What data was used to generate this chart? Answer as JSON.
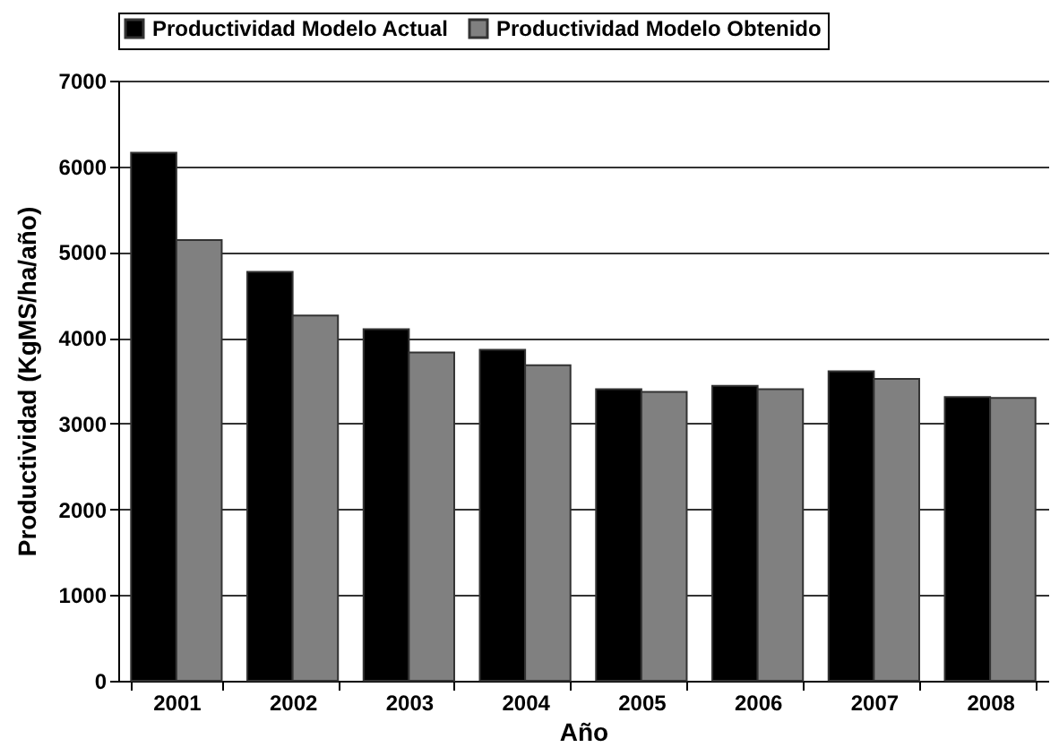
{
  "chart_data": {
    "type": "bar",
    "xlabel": "Año",
    "ylabel": "Productividad (KgMS/ha/año)",
    "categories": [
      "2001",
      "2002",
      "2003",
      "2004",
      "2005",
      "2006",
      "2007",
      "2008"
    ],
    "series": [
      {
        "name": "Productividad Modelo Actual",
        "color": "#000000",
        "values": [
          6160,
          4770,
          4100,
          3860,
          3400,
          3440,
          3610,
          3310
        ]
      },
      {
        "name": "Productividad Modelo Obtenido",
        "color": "#808080",
        "values": [
          5140,
          4260,
          3830,
          3680,
          3370,
          3400,
          3520,
          3300
        ]
      }
    ],
    "ylim": [
      0,
      7000
    ],
    "yticks": [
      0,
      1000,
      2000,
      3000,
      4000,
      5000,
      6000,
      7000
    ],
    "grid": "y",
    "legend": "top"
  }
}
